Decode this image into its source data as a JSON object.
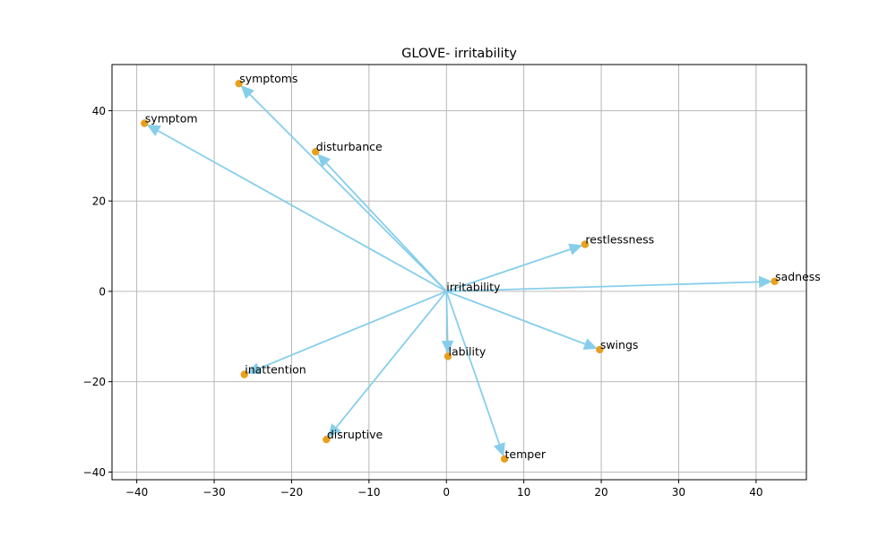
{
  "chart_data": {
    "type": "scatter",
    "title": "GLOVE- irritability",
    "xlabel": "",
    "ylabel": "",
    "xlim": [
      -43.2,
      46.5
    ],
    "ylim": [
      -41.7,
      50.2
    ],
    "x_ticks": [
      -40,
      -30,
      -20,
      -10,
      0,
      10,
      20,
      30,
      40
    ],
    "x_tick_labels": [
      "−40",
      "−30",
      "−20",
      "−10",
      "0",
      "10",
      "20",
      "30",
      "40"
    ],
    "y_ticks": [
      -40,
      -20,
      0,
      20,
      40
    ],
    "y_tick_labels": [
      "−40",
      "−20",
      "0",
      "20",
      "40"
    ],
    "grid": true,
    "origin": {
      "label": "irritability",
      "x": 0,
      "y": 0
    },
    "points": [
      {
        "label": "symptoms",
        "x": -26.8,
        "y": 46.0
      },
      {
        "label": "symptom",
        "x": -39.0,
        "y": 37.2
      },
      {
        "label": "disturbance",
        "x": -16.9,
        "y": 30.9
      },
      {
        "label": "restlessness",
        "x": 17.9,
        "y": 10.4
      },
      {
        "label": "sadness",
        "x": 42.4,
        "y": 2.2
      },
      {
        "label": "swings",
        "x": 19.8,
        "y": -12.9
      },
      {
        "label": "lability",
        "x": 0.2,
        "y": -14.4
      },
      {
        "label": "inattention",
        "x": -26.1,
        "y": -18.4
      },
      {
        "label": "disruptive",
        "x": -15.5,
        "y": -32.8
      },
      {
        "label": "temper",
        "x": 7.5,
        "y": -37.1
      }
    ],
    "colors": {
      "point": "#e8a01e",
      "arrow": "#87ceeb"
    }
  }
}
